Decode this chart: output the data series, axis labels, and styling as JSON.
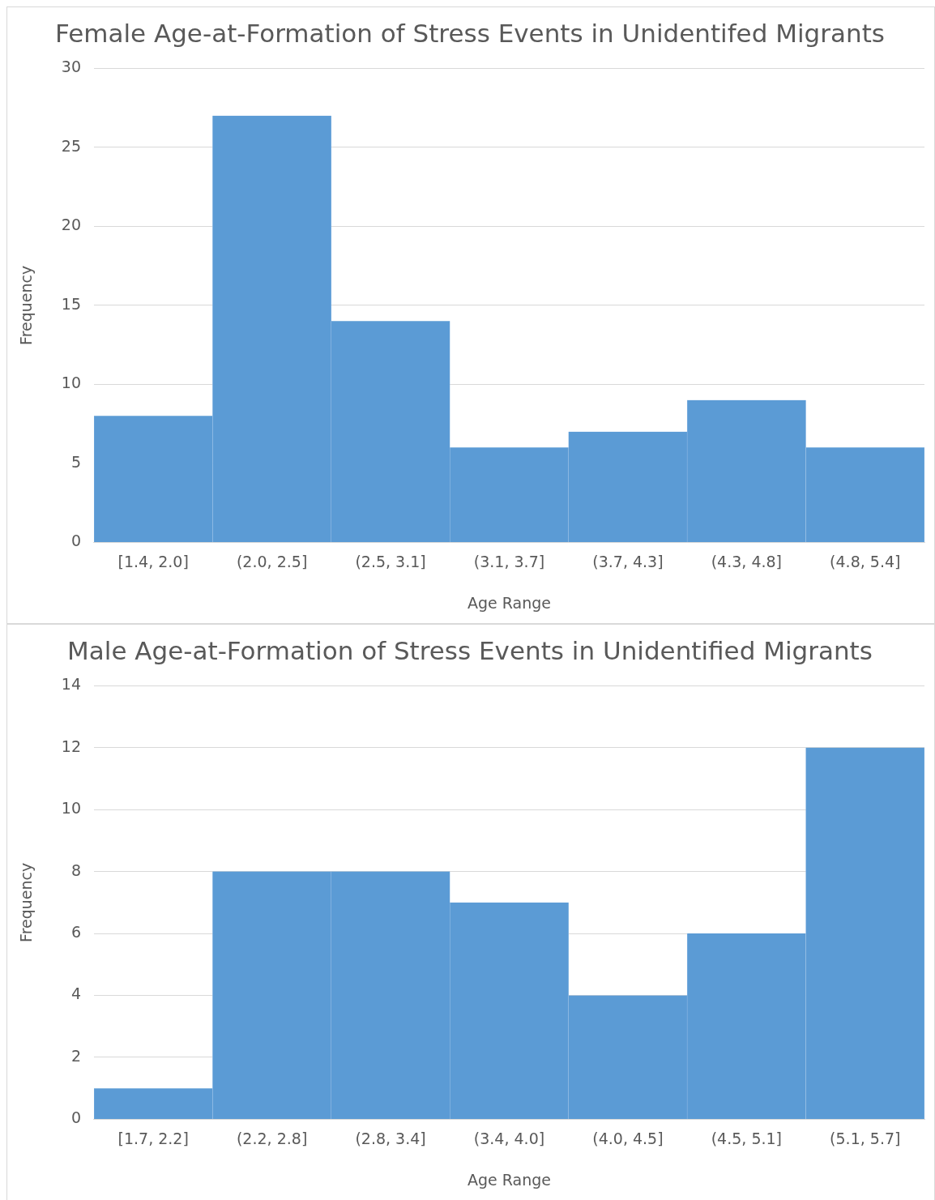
{
  "chart_data": [
    {
      "type": "bar",
      "title": "Female Age-at-Formation of Stress Events in Unidentifed Migrants",
      "xlabel": "Age Range",
      "ylabel": "Frequency",
      "categories": [
        "[1.4, 2.0]",
        "(2.0, 2.5]",
        "(2.5, 3.1]",
        "(3.1, 3.7]",
        "(3.7, 4.3]",
        "(4.3, 4.8]",
        "(4.8, 5.4]"
      ],
      "values": [
        8,
        27,
        14,
        6,
        7,
        9,
        6
      ],
      "color": "#5b9bd5",
      "ylim": [
        0,
        30
      ],
      "yticks": [
        0,
        5,
        10,
        15,
        20,
        25,
        30
      ],
      "grid": "y"
    },
    {
      "type": "bar",
      "title": "Male Age-at-Formation of Stress Events in Unidentified Migrants",
      "xlabel": "Age Range",
      "ylabel": "Frequency",
      "categories": [
        "[1.7, 2.2]",
        "(2.2, 2.8]",
        "(2.8, 3.4]",
        "(3.4, 4.0]",
        "(4.0, 4.5]",
        "(4.5, 5.1]",
        "(5.1, 5.7]"
      ],
      "values": [
        1,
        8,
        8,
        7,
        4,
        6,
        12
      ],
      "color": "#5b9bd5",
      "ylim": [
        0,
        14
      ],
      "yticks": [
        0,
        2,
        4,
        6,
        8,
        10,
        12,
        14
      ],
      "grid": "y"
    }
  ]
}
